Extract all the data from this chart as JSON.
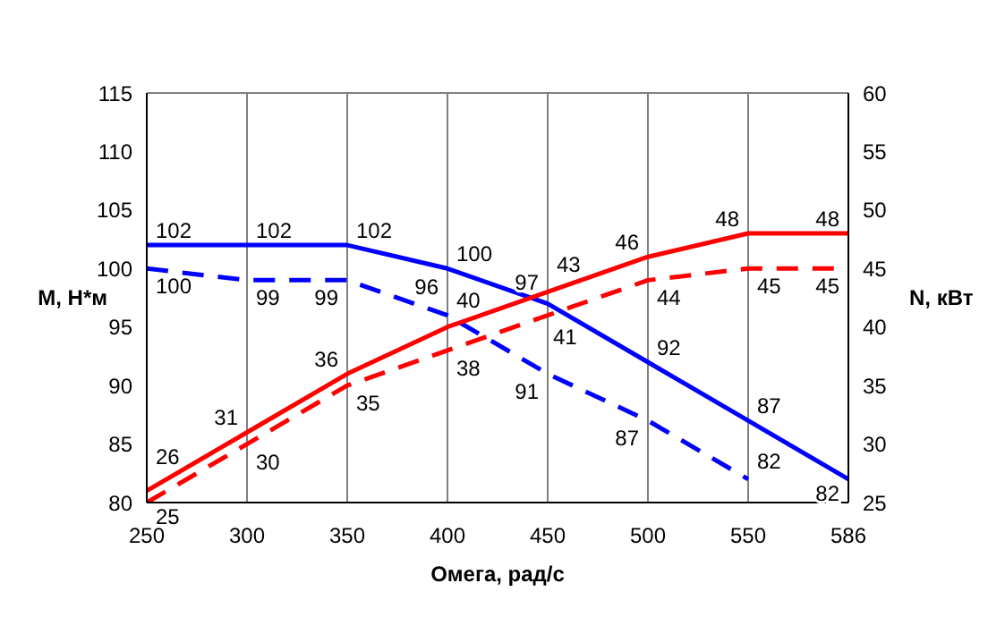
{
  "chart_data": {
    "type": "line",
    "xlabel": "Омега, рад/с",
    "ylabel": "M, Н*м",
    "y2label": "N, кВт",
    "categories": [
      "250",
      "300",
      "350",
      "400",
      "450",
      "500",
      "550",
      "586"
    ],
    "series": [
      {
        "color": "#0000ff",
        "line_style": "solid",
        "values": [
          102,
          102,
          102,
          100,
          97,
          92,
          87,
          82
        ]
      },
      {
        "color": "#0000ff",
        "line_style": "dashed",
        "values": [
          100,
          99,
          99,
          96,
          91,
          87,
          82,
          null
        ]
      },
      {
        "color": "#ff0000",
        "line_style": "solid",
        "axis": "y2",
        "values": [
          26,
          31,
          36,
          40,
          43,
          46,
          48,
          48
        ]
      },
      {
        "color": "#ff0000",
        "line_style": "dashed",
        "axis": "y2",
        "values": [
          25,
          30,
          35,
          38,
          41,
          44,
          45,
          45
        ]
      }
    ],
    "ylim": [
      80,
      115
    ],
    "yticks": [
      80,
      85,
      90,
      95,
      100,
      105,
      110,
      115
    ],
    "y2lim": [
      25,
      60
    ],
    "y2ticks": [
      25,
      30,
      35,
      40,
      45,
      50,
      55,
      60
    ],
    "grid": true,
    "legend": false,
    "marker": "none",
    "data_labels": true
  }
}
